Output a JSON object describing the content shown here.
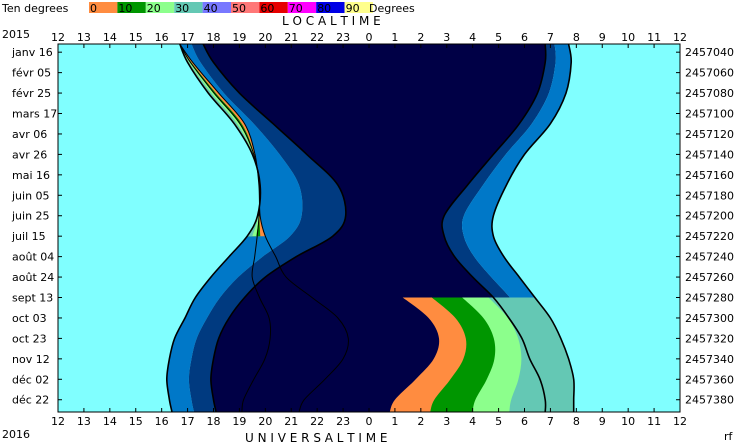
{
  "chart_data": {
    "type": "area",
    "year_top": "2015",
    "year_bottom": "2016",
    "top_axis_title": "L O C A L     T I M E",
    "bottom_axis_title": "U N I V E R S A L     T I M E",
    "corner_label": "rf",
    "legend": {
      "label_left": "Ten degrees",
      "label_right": "Degrees",
      "values": [
        "0",
        "10",
        "20",
        "30",
        "40",
        "50",
        "60",
        "70",
        "80",
        "90"
      ],
      "colors": [
        "#ff8c40",
        "#009600",
        "#8cff8c",
        "#64c8b4",
        "#7878ff",
        "#ff7878",
        "#e60000",
        "#ff00ff",
        "#0000e6",
        "#ffff8c"
      ]
    },
    "hour_ticks": [
      "12",
      "13",
      "14",
      "15",
      "16",
      "17",
      "18",
      "19",
      "20",
      "21",
      "22",
      "23",
      "0",
      "1",
      "2",
      "3",
      "4",
      "5",
      "6",
      "7",
      "8",
      "9",
      "10",
      "11",
      "12"
    ],
    "date_labels": [
      "janv 16",
      "févr 05",
      "févr 25",
      "mars 17",
      "avr 06",
      "avr 26",
      "mai 16",
      "juin 05",
      "juin 25",
      "juil 15",
      "août 04",
      "août 24",
      "sept 13",
      "oct 03",
      "oct 23",
      "nov 12",
      "déc 02",
      "déc 22"
    ],
    "julian_labels": [
      "2457040",
      "2457060",
      "2457080",
      "2457100",
      "2457120",
      "2457140",
      "2457160",
      "2457180",
      "2457200",
      "2457220",
      "2457240",
      "2457260",
      "2457280",
      "2457300",
      "2457320",
      "2457340",
      "2457360",
      "2457380"
    ],
    "x_range_hours": [
      12,
      36
    ],
    "y_range_jd": [
      2457032,
      2457392
    ],
    "colors": {
      "day": "#80ffff",
      "night": "#000046",
      "twilight_dark": "#003a80",
      "twilight_mid": "#0078c8",
      "alt0": "#ff8c40",
      "alt10": "#009600",
      "alt20": "#8cff8c",
      "alt30": "#64c8b4"
    },
    "series": [
      {
        "x_ut_hours": [
          16.7,
          17.2,
          18.2,
          19.2,
          19.6,
          19.75,
          19.8,
          20.0,
          20.4,
          20.8,
          21.8,
          22.8,
          23.2,
          23.0,
          22.3,
          21.5,
          21.3
        ],
        "jd": [
          2457032,
          2457050,
          2457080,
          2457110,
          2457140,
          2457170,
          2457200,
          2457220,
          2457240,
          2457260,
          2457280,
          2457300,
          2457320,
          2457340,
          2457360,
          2457380,
          2457392
        ],
        "evening_sunset_x": [
          16.7,
          17.0,
          17.8,
          18.8,
          19.5,
          19.8,
          19.7,
          19.3,
          18.6,
          17.9,
          17.3,
          16.9,
          16.5,
          16.3,
          16.2,
          16.3,
          16.4
        ],
        "evening_dusk_end_x": [
          17.6,
          18.0,
          19.0,
          20.3,
          21.6,
          22.8,
          23.1,
          22.6,
          21.2,
          20.0,
          19.2,
          18.6,
          18.2,
          18.0,
          17.9,
          18.0,
          18.1
        ],
        "morning_dawn_start_x": [
          30.8,
          30.8,
          30.5,
          29.8,
          28.8,
          27.8,
          26.9,
          26.9,
          27.3,
          28.0,
          28.8,
          29.4,
          29.9,
          30.2,
          30.6,
          30.8,
          30.8
        ],
        "morning_sunrise_x": [
          31.7,
          31.8,
          31.6,
          31.0,
          30.0,
          29.3,
          28.8,
          28.8,
          29.2,
          29.8,
          30.4,
          31.0,
          31.4,
          31.7,
          31.9,
          31.9,
          31.9
        ]
      }
    ]
  }
}
